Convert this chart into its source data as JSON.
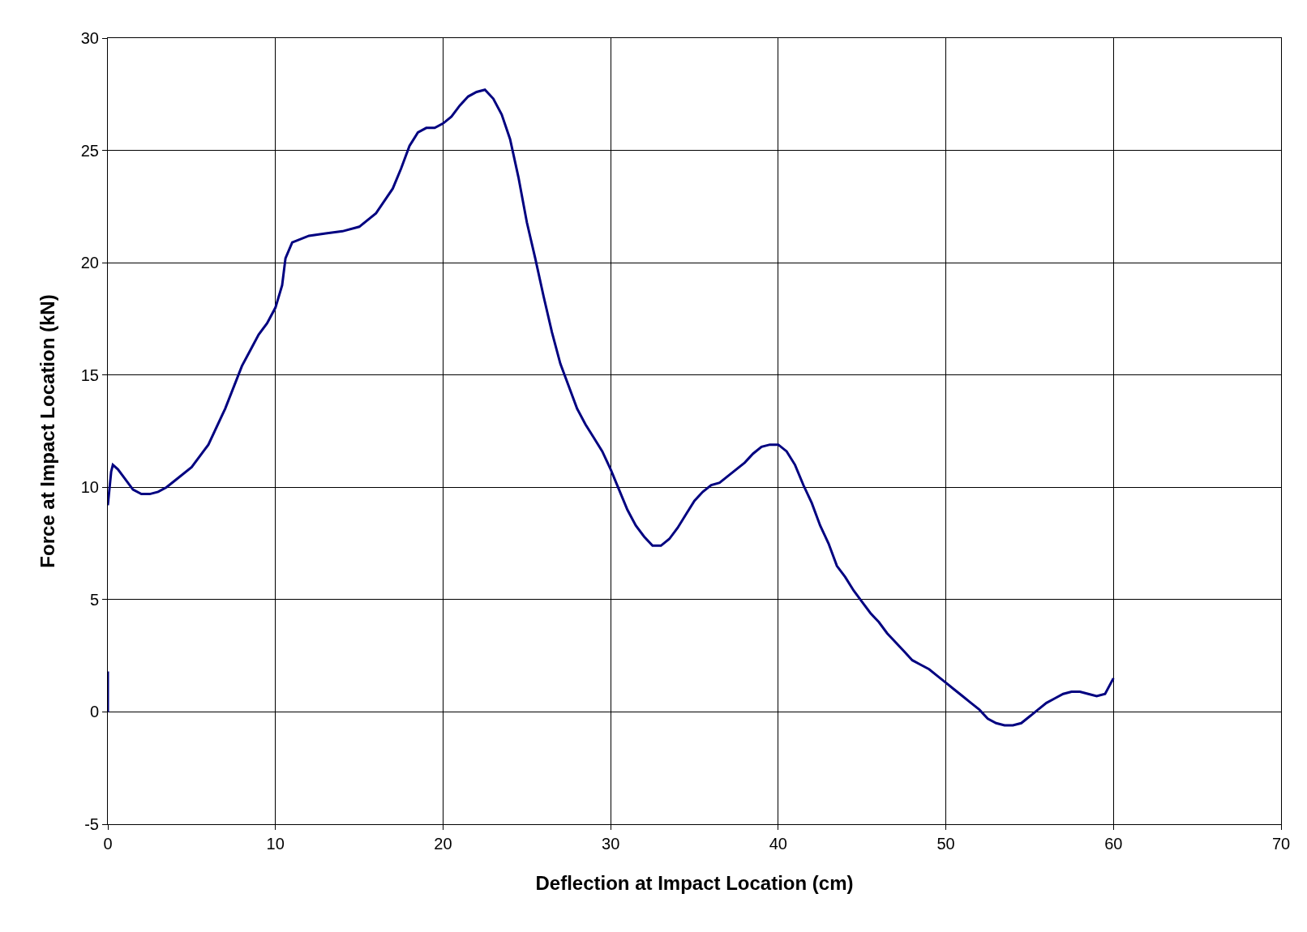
{
  "chart_data": {
    "type": "line",
    "xlabel": "Deflection at Impact Location (cm)",
    "ylabel": "Force at Impact Location (kN)",
    "xlim": [
      0,
      70
    ],
    "xticks": [
      0,
      10,
      20,
      30,
      40,
      50,
      60,
      70
    ],
    "ylim": [
      -5,
      30
    ],
    "yticks": [
      -5,
      0,
      5,
      10,
      15,
      20,
      25,
      30
    ],
    "grid": true,
    "legend": false,
    "marker": "none",
    "line_style": "solid",
    "series": [
      {
        "color": "#000080",
        "x": [
          0,
          0,
          null,
          0,
          0.2,
          0.3,
          0.6,
          1,
          1.5,
          2,
          2.5,
          3,
          3.5,
          4,
          5,
          6,
          7,
          8,
          8.5,
          9,
          9.5,
          10,
          10.4,
          10.6,
          11,
          12,
          13,
          14,
          15,
          16,
          17,
          17.5,
          18,
          18.5,
          19,
          19.5,
          20,
          20.5,
          21,
          21.5,
          22,
          22.5,
          23,
          23.5,
          24,
          24.5,
          25,
          25.5,
          26,
          26.5,
          27,
          27.5,
          28,
          28.5,
          29,
          29.5,
          30,
          30.5,
          31,
          31.5,
          32,
          32.5,
          33,
          33.5,
          34,
          34.5,
          35,
          35.5,
          36,
          36.5,
          37,
          38,
          38.5,
          39,
          39.5,
          40,
          40.5,
          41,
          41.5,
          42,
          42.5,
          43,
          43.5,
          44,
          44.5,
          45,
          45.5,
          46,
          46.5,
          47,
          47.5,
          48,
          48.5,
          49,
          49.5,
          50,
          50.5,
          51,
          51.5,
          52,
          52.5,
          53,
          53.5,
          54,
          54.5,
          55,
          55.5,
          56,
          56.5,
          57,
          57.5,
          58,
          58.5,
          59,
          59.5,
          60
        ],
        "values": [
          0,
          1.8,
          null,
          9.2,
          10.7,
          11.0,
          10.8,
          10.4,
          9.9,
          9.7,
          9.7,
          9.8,
          10.0,
          10.3,
          10.9,
          11.9,
          13.5,
          15.4,
          16.1,
          16.8,
          17.3,
          18,
          19,
          20.2,
          20.9,
          21.2,
          21.3,
          21.4,
          21.6,
          22.2,
          23.3,
          24.2,
          25.2,
          25.8,
          26,
          26,
          26.2,
          26.5,
          27,
          27.4,
          27.6,
          27.7,
          27.3,
          26.6,
          25.5,
          23.8,
          21.8,
          20.2,
          18.5,
          16.9,
          15.5,
          14.5,
          13.5,
          12.8,
          12.2,
          11.6,
          10.8,
          9.9,
          9,
          8.3,
          7.8,
          7.4,
          7.4,
          7.7,
          8.2,
          8.8,
          9.4,
          9.8,
          10.1,
          10.2,
          10.5,
          11.1,
          11.5,
          11.8,
          11.9,
          11.9,
          11.6,
          11,
          10.1,
          9.3,
          8.3,
          7.5,
          6.5,
          6,
          5.4,
          4.9,
          4.4,
          4,
          3.5,
          3.1,
          2.7,
          2.3,
          2.1,
          1.9,
          1.6,
          1.3,
          1,
          0.7,
          0.4,
          0.1,
          -0.3,
          -0.5,
          -0.6,
          -0.6,
          -0.5,
          -0.2,
          0.1,
          0.4,
          0.6,
          0.8,
          0.9,
          0.9,
          0.8,
          0.7,
          0.8,
          1.5
        ]
      }
    ]
  }
}
